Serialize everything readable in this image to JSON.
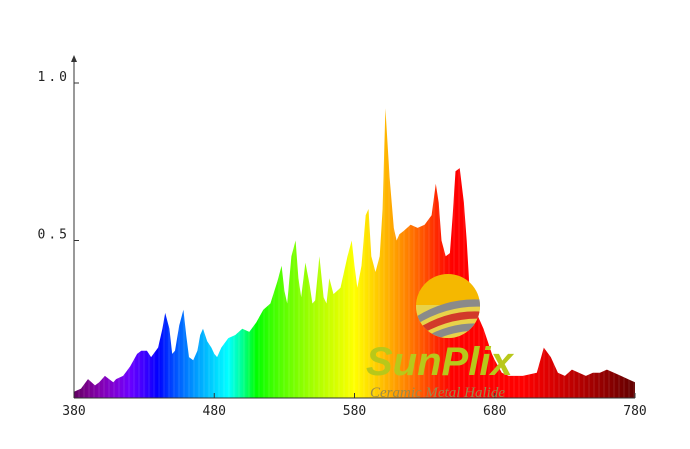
{
  "chart_data": {
    "type": "area",
    "title": "",
    "xlabel": "",
    "ylabel": "",
    "xlim": [
      380,
      780
    ],
    "ylim": [
      0,
      1.0
    ],
    "x_ticks": [
      {
        "value": 380,
        "label": "380"
      },
      {
        "value": 480,
        "label": "480"
      },
      {
        "value": 580,
        "label": "580"
      },
      {
        "value": 680,
        "label": "680"
      },
      {
        "value": 780,
        "label": "780"
      }
    ],
    "y_ticks": [
      {
        "value": 0.5,
        "label": "0.5"
      },
      {
        "value": 1.0,
        "label": "1.0"
      }
    ],
    "grid": false,
    "fill": "wavelength-color spectrum",
    "series": [
      {
        "x": [
          380,
          385,
          390,
          395,
          398,
          402,
          405,
          408,
          410,
          415,
          420,
          425,
          428,
          432,
          435,
          440,
          443,
          445,
          448,
          450,
          452,
          455,
          458,
          460,
          462,
          465,
          468,
          470,
          472,
          475,
          478,
          480,
          482,
          485,
          490,
          495,
          500,
          505,
          510,
          515,
          520,
          525,
          528,
          530,
          532,
          535,
          538,
          540,
          542,
          545,
          548,
          550,
          552,
          555,
          558,
          560,
          562,
          565,
          570,
          575,
          578,
          580,
          582,
          585,
          588,
          590,
          592,
          595,
          598,
          600,
          602,
          605,
          608,
          610,
          612,
          615,
          620,
          625,
          630,
          635,
          638,
          640,
          642,
          645,
          648,
          650,
          652,
          655,
          658,
          660,
          662,
          665,
          668,
          670,
          672,
          675,
          678,
          680,
          685,
          690,
          700,
          710,
          715,
          720,
          725,
          730,
          735,
          740,
          745,
          750,
          755,
          760,
          765,
          770,
          775,
          780
        ],
        "y": [
          0.02,
          0.03,
          0.06,
          0.04,
          0.05,
          0.07,
          0.06,
          0.05,
          0.06,
          0.07,
          0.1,
          0.14,
          0.15,
          0.15,
          0.13,
          0.16,
          0.22,
          0.27,
          0.22,
          0.14,
          0.15,
          0.23,
          0.28,
          0.2,
          0.13,
          0.12,
          0.15,
          0.2,
          0.22,
          0.18,
          0.16,
          0.14,
          0.13,
          0.16,
          0.19,
          0.2,
          0.22,
          0.21,
          0.24,
          0.28,
          0.3,
          0.37,
          0.42,
          0.34,
          0.3,
          0.45,
          0.5,
          0.38,
          0.32,
          0.43,
          0.36,
          0.3,
          0.31,
          0.45,
          0.32,
          0.3,
          0.38,
          0.33,
          0.35,
          0.45,
          0.5,
          0.42,
          0.35,
          0.42,
          0.58,
          0.6,
          0.45,
          0.4,
          0.45,
          0.6,
          0.92,
          0.7,
          0.54,
          0.5,
          0.52,
          0.53,
          0.55,
          0.54,
          0.55,
          0.58,
          0.68,
          0.62,
          0.5,
          0.45,
          0.46,
          0.58,
          0.72,
          0.73,
          0.62,
          0.5,
          0.35,
          0.3,
          0.26,
          0.24,
          0.22,
          0.18,
          0.14,
          0.12,
          0.08,
          0.07,
          0.07,
          0.08,
          0.16,
          0.13,
          0.08,
          0.07,
          0.09,
          0.08,
          0.07,
          0.08,
          0.08,
          0.09,
          0.08,
          0.07,
          0.06,
          0.05
        ]
      }
    ]
  },
  "logo": {
    "name": "SunPlix",
    "tagline": "Ceramic Metal Halide",
    "colors": {
      "wordmark": "#b8c81a",
      "sun_top": "#f5b800",
      "sun_bottom": "#e8d24a",
      "stripe": "#8a8a8a",
      "stripe_red": "#d23a2a",
      "tagline": "#9a8a4a"
    }
  }
}
